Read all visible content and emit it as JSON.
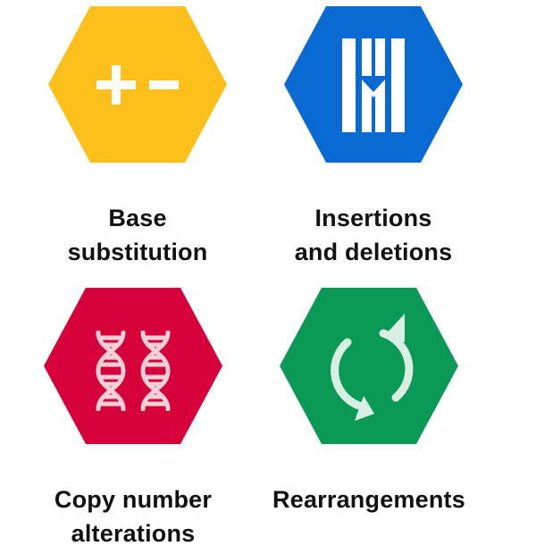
{
  "tiles": [
    {
      "id": "base-substitution",
      "label_lines": [
        "Base",
        "substitution"
      ],
      "color": "#FDC01B",
      "icon": "plus-minus-icon"
    },
    {
      "id": "insertions-deletions",
      "label_lines": [
        "Insertions",
        "and deletions"
      ],
      "color": "#0A6AD3",
      "icon": "indel-bars-icon"
    },
    {
      "id": "copy-number",
      "label_lines": [
        "Copy number",
        "alterations"
      ],
      "color": "#D6003A",
      "icon": "dna-double-helix-icon"
    },
    {
      "id": "rearrangements",
      "label_lines": [
        "Rearrangements"
      ],
      "color": "#0A9A55",
      "icon": "circular-arrows-icon"
    }
  ]
}
